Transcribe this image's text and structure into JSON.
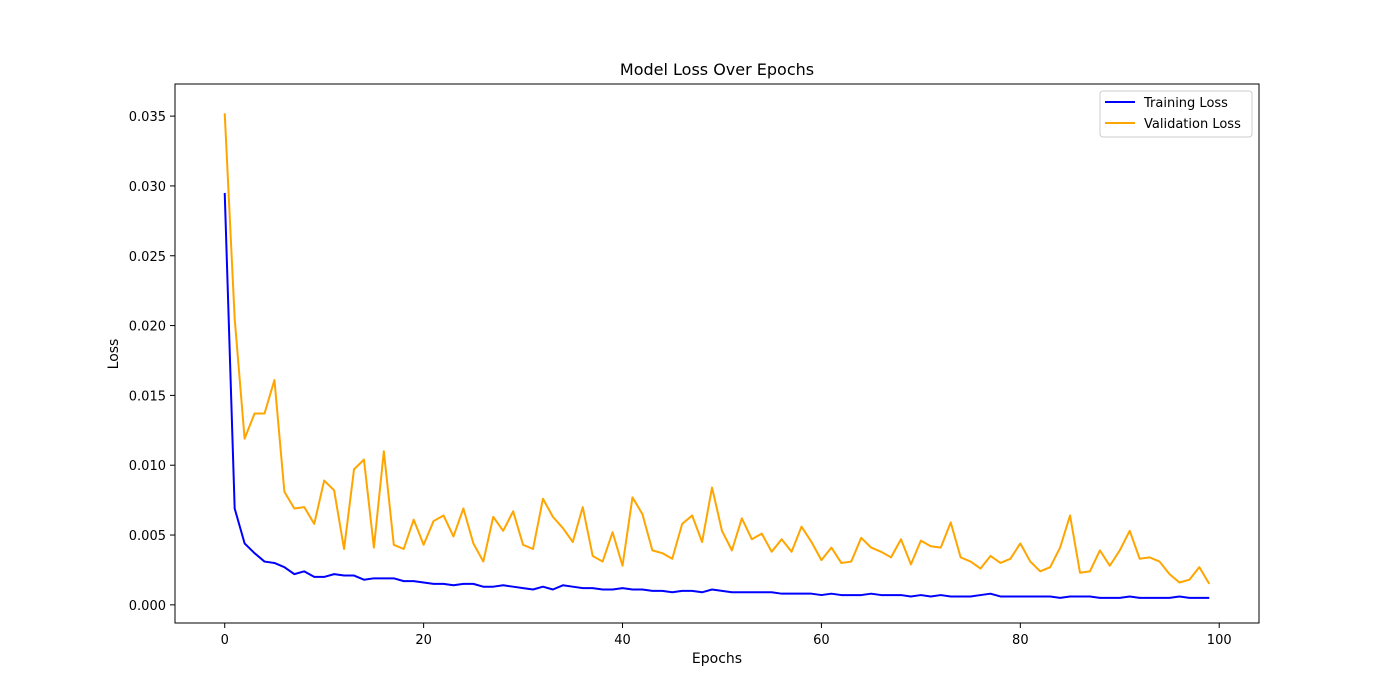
{
  "chart_data": {
    "type": "line",
    "title": "Model Loss Over Epochs",
    "xlabel": "Epochs",
    "ylabel": "Loss",
    "xlim": [
      -5,
      104
    ],
    "ylim": [
      -0.0013,
      0.0373
    ],
    "xticks": [
      0,
      20,
      40,
      60,
      80,
      100
    ],
    "yticks": [
      0.0,
      0.005,
      0.01,
      0.015,
      0.02,
      0.025,
      0.03,
      0.035
    ],
    "ytick_labels": [
      "0.000",
      "0.005",
      "0.010",
      "0.015",
      "0.020",
      "0.025",
      "0.030",
      "0.035"
    ],
    "grid": false,
    "legend_position": "top-right",
    "series": [
      {
        "name": "Training Loss",
        "color": "#0000ff",
        "x": [
          0,
          1,
          2,
          3,
          4,
          5,
          6,
          7,
          8,
          9,
          10,
          11,
          12,
          13,
          14,
          15,
          16,
          17,
          18,
          19,
          20,
          21,
          22,
          23,
          24,
          25,
          26,
          27,
          28,
          29,
          30,
          31,
          32,
          33,
          34,
          35,
          36,
          37,
          38,
          39,
          40,
          41,
          42,
          43,
          44,
          45,
          46,
          47,
          48,
          49,
          50,
          51,
          52,
          53,
          54,
          55,
          56,
          57,
          58,
          59,
          60,
          61,
          62,
          63,
          64,
          65,
          66,
          67,
          68,
          69,
          70,
          71,
          72,
          73,
          74,
          75,
          76,
          77,
          78,
          79,
          80,
          81,
          82,
          83,
          84,
          85,
          86,
          87,
          88,
          89,
          90,
          91,
          92,
          93,
          94,
          95,
          96,
          97,
          98,
          99
        ],
        "values": [
          0.0295,
          0.0069,
          0.0044,
          0.0037,
          0.0031,
          0.003,
          0.0027,
          0.0022,
          0.0024,
          0.002,
          0.002,
          0.0022,
          0.0021,
          0.0021,
          0.0018,
          0.0019,
          0.0019,
          0.0019,
          0.0017,
          0.0017,
          0.0016,
          0.0015,
          0.0015,
          0.0014,
          0.0015,
          0.0015,
          0.0013,
          0.0013,
          0.0014,
          0.0013,
          0.0012,
          0.0011,
          0.0013,
          0.0011,
          0.0014,
          0.0013,
          0.0012,
          0.0012,
          0.0011,
          0.0011,
          0.0012,
          0.0011,
          0.0011,
          0.001,
          0.001,
          0.0009,
          0.001,
          0.001,
          0.0009,
          0.0011,
          0.001,
          0.0009,
          0.0009,
          0.0009,
          0.0009,
          0.0009,
          0.0008,
          0.0008,
          0.0008,
          0.0008,
          0.0007,
          0.0008,
          0.0007,
          0.0007,
          0.0007,
          0.0008,
          0.0007,
          0.0007,
          0.0007,
          0.0006,
          0.0007,
          0.0006,
          0.0007,
          0.0006,
          0.0006,
          0.0006,
          0.0007,
          0.0008,
          0.0006,
          0.0006,
          0.0006,
          0.0006,
          0.0006,
          0.0006,
          0.0005,
          0.0006,
          0.0006,
          0.0006,
          0.0005,
          0.0005,
          0.0005,
          0.0006,
          0.0005,
          0.0005,
          0.0005,
          0.0005,
          0.0006,
          0.0005,
          0.0005,
          0.0005
        ]
      },
      {
        "name": "Validation Loss",
        "color": "#ffa500",
        "x": [
          0,
          1,
          2,
          3,
          4,
          5,
          6,
          7,
          8,
          9,
          10,
          11,
          12,
          13,
          14,
          15,
          16,
          17,
          18,
          19,
          20,
          21,
          22,
          23,
          24,
          25,
          26,
          27,
          28,
          29,
          30,
          31,
          32,
          33,
          34,
          35,
          36,
          37,
          38,
          39,
          40,
          41,
          42,
          43,
          44,
          45,
          46,
          47,
          48,
          49,
          50,
          51,
          52,
          53,
          54,
          55,
          56,
          57,
          58,
          59,
          60,
          61,
          62,
          63,
          64,
          65,
          66,
          67,
          68,
          69,
          70,
          71,
          72,
          73,
          74,
          75,
          76,
          77,
          78,
          79,
          80,
          81,
          82,
          83,
          84,
          85,
          86,
          87,
          88,
          89,
          90,
          91,
          92,
          93,
          94,
          95,
          96,
          97,
          98,
          99
        ],
        "values": [
          0.0352,
          0.0205,
          0.0119,
          0.0137,
          0.0137,
          0.0161,
          0.0081,
          0.0069,
          0.007,
          0.0058,
          0.0089,
          0.0082,
          0.004,
          0.0097,
          0.0104,
          0.0041,
          0.011,
          0.0043,
          0.004,
          0.0061,
          0.0043,
          0.006,
          0.0064,
          0.0049,
          0.0069,
          0.0044,
          0.0031,
          0.0063,
          0.0053,
          0.0067,
          0.0043,
          0.004,
          0.0076,
          0.0063,
          0.0055,
          0.0045,
          0.007,
          0.0035,
          0.0031,
          0.0052,
          0.0028,
          0.0077,
          0.0065,
          0.0039,
          0.0037,
          0.0033,
          0.0058,
          0.0064,
          0.0045,
          0.0084,
          0.0053,
          0.0039,
          0.0062,
          0.0047,
          0.0051,
          0.0038,
          0.0047,
          0.0038,
          0.0056,
          0.0045,
          0.0032,
          0.0041,
          0.003,
          0.0031,
          0.0048,
          0.0041,
          0.0038,
          0.0034,
          0.0047,
          0.0029,
          0.0046,
          0.0042,
          0.0041,
          0.0059,
          0.0034,
          0.0031,
          0.0026,
          0.0035,
          0.003,
          0.0033,
          0.0044,
          0.0031,
          0.0024,
          0.0027,
          0.0041,
          0.0064,
          0.0023,
          0.0024,
          0.0039,
          0.0028,
          0.0039,
          0.0053,
          0.0033,
          0.0034,
          0.0031,
          0.0022,
          0.0016,
          0.0018,
          0.0027,
          0.0015
        ]
      }
    ]
  }
}
